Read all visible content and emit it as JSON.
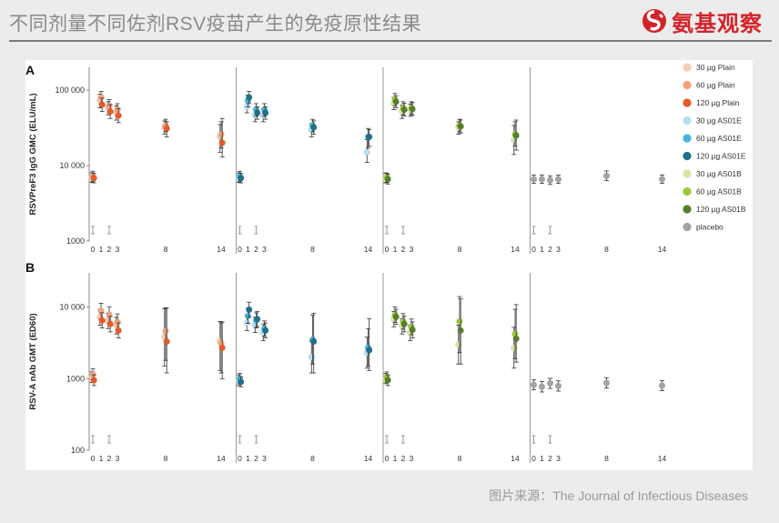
{
  "header": {
    "title": "不同剂量不同佐剂RSV疫苗产生的免疫原性结果",
    "logo_text": "氨基观察"
  },
  "source": "图片来源：The Journal of Infectious Diseases",
  "legend": [
    {
      "label": "30 µg Plain",
      "color": "#f6cdb0"
    },
    {
      "label": "60 µg Plain",
      "color": "#f3a27c"
    },
    {
      "label": "120 µg Plain",
      "color": "#e85a28"
    },
    {
      "label": "30 µg AS01E",
      "color": "#b6dff0"
    },
    {
      "label": "60 µg AS01E",
      "color": "#47b4d6"
    },
    {
      "label": "120 µg AS01E",
      "color": "#216f8a"
    },
    {
      "label": "30 µg AS01B",
      "color": "#d5e8a3"
    },
    {
      "label": "60 µg AS01B",
      "color": "#9cc838"
    },
    {
      "label": "120 µg AS01B",
      "color": "#567d2e"
    },
    {
      "label": "placebo",
      "color": "#a3a3a3"
    }
  ],
  "chart_data": [
    {
      "type": "scatter",
      "panel": "A",
      "ylabel": "RSVPreF3 IgG GMC (ELU/mL)",
      "yscale": "log",
      "ylim": [
        1000,
        200000
      ],
      "yticks": [
        1000,
        10000,
        100000
      ],
      "ytick_labels": [
        "1000",
        "10 000",
        "100 000"
      ],
      "x_ticks": [
        0,
        1,
        2,
        3,
        8,
        14
      ],
      "x_tick_labels": [
        "0",
        "1",
        "2",
        "3",
        "8",
        "14"
      ],
      "subplots": [
        {
          "group": "Plain",
          "series": [
            {
              "dose": "30 µg",
              "color": "#f6cdb0",
              "x": [
                0,
                1,
                2,
                3,
                8,
                14
              ],
              "y": [
                7000,
                72000,
                58000,
                50000,
                32000,
                24000
              ],
              "err_low": [
                6000,
                58000,
                47000,
                40000,
                26000,
                15000
              ],
              "err_high": [
                8000,
                88000,
                70000,
                62000,
                39000,
                35000
              ]
            },
            {
              "dose": "60 µg",
              "color": "#f3a27c",
              "x": [
                0,
                1,
                2,
                3,
                8,
                14
              ],
              "y": [
                7200,
                80000,
                62000,
                55000,
                34000,
                26000
              ],
              "err_low": [
                6200,
                65000,
                50000,
                45000,
                28000,
                17000
              ],
              "err_high": [
                8400,
                96000,
                75000,
                66000,
                41000,
                38000
              ]
            },
            {
              "dose": "120 µg",
              "color": "#e85a28",
              "x": [
                0,
                1,
                2,
                3,
                8,
                14
              ],
              "y": [
                6800,
                64000,
                52000,
                46000,
                31000,
                20000
              ],
              "err_low": [
                5900,
                52000,
                42000,
                37000,
                24000,
                13000
              ],
              "err_high": [
                7900,
                78000,
                64000,
                57000,
                38000,
                42000
              ]
            }
          ]
        },
        {
          "group": "AS01E",
          "series": [
            {
              "dose": "30 µg",
              "color": "#b6dff0",
              "x": [
                0,
                1,
                2,
                3,
                8,
                14
              ],
              "y": [
                7000,
                60000,
                46000,
                46000,
                30000,
                15000
              ],
              "err_low": [
                6000,
                50000,
                38000,
                38000,
                24000,
                11000
              ],
              "err_high": [
                8000,
                72000,
                56000,
                56000,
                36000,
                22000
              ]
            },
            {
              "dose": "60 µg",
              "color": "#47b4d6",
              "x": [
                0,
                1,
                2,
                3,
                8,
                14
              ],
              "y": [
                7200,
                72000,
                55000,
                55000,
                34000,
                24000
              ],
              "err_low": [
                6200,
                60000,
                45000,
                45000,
                28000,
                17000
              ],
              "err_high": [
                8400,
                86000,
                66000,
                66000,
                41000,
                31000
              ]
            },
            {
              "dose": "120 µg",
              "color": "#216f8a",
              "x": [
                0,
                1,
                2,
                3,
                8,
                14
              ],
              "y": [
                6800,
                80000,
                50000,
                50000,
                32000,
                24000
              ],
              "err_low": [
                5900,
                66000,
                41000,
                41000,
                26000,
                18000
              ],
              "err_high": [
                7900,
                96000,
                60000,
                60000,
                39000,
                30000
              ]
            }
          ]
        },
        {
          "group": "AS01B",
          "series": [
            {
              "dose": "30 µg",
              "color": "#d5e8a3",
              "x": [
                0,
                1,
                2,
                3,
                8,
                14
              ],
              "y": [
                6800,
                66000,
                52000,
                54000,
                32000,
                22000
              ],
              "err_low": [
                5900,
                55000,
                42000,
                45000,
                26000,
                14000
              ],
              "err_high": [
                7900,
                80000,
                63000,
                65000,
                38000,
                34000
              ]
            },
            {
              "dose": "60 µg",
              "color": "#9cc838",
              "x": [
                0,
                1,
                2,
                3,
                8,
                14
              ],
              "y": [
                7000,
                75000,
                58000,
                58000,
                34000,
                26000
              ],
              "err_low": [
                6000,
                62000,
                47000,
                48000,
                28000,
                18000
              ],
              "err_high": [
                8000,
                90000,
                70000,
                70000,
                41000,
                38000
              ]
            },
            {
              "dose": "120 µg",
              "color": "#567d2e",
              "x": [
                0,
                1,
                2,
                3,
                8,
                14
              ],
              "y": [
                6600,
                70000,
                55000,
                56000,
                33000,
                25000
              ],
              "err_low": [
                5700,
                58000,
                45000,
                46000,
                27000,
                16000
              ],
              "err_high": [
                7700,
                84000,
                67000,
                68000,
                40000,
                40000
              ]
            }
          ]
        },
        {
          "group": "placebo",
          "series": [
            {
              "dose": "placebo",
              "color": "#a3a3a3",
              "x": [
                0,
                1,
                2,
                3,
                8,
                14
              ],
              "y": [
                6600,
                6600,
                6400,
                6600,
                7300,
                6600
              ],
              "err_low": [
                5800,
                5800,
                5600,
                5800,
                6300,
                5800
              ],
              "err_high": [
                7500,
                7500,
                7300,
                7500,
                8500,
                7500
              ]
            }
          ]
        }
      ]
    },
    {
      "type": "scatter",
      "panel": "B",
      "ylabel": "RSV-A nAb GMT (ED60)",
      "yscale": "log",
      "ylim": [
        100,
        30000
      ],
      "yticks": [
        100,
        1000,
        10000
      ],
      "ytick_labels": [
        "100",
        "1000",
        "10 000"
      ],
      "x_ticks": [
        0,
        1,
        2,
        3,
        8,
        14
      ],
      "x_tick_labels": [
        "0",
        "1",
        "2",
        "3",
        "8",
        "14"
      ],
      "subplots": [
        {
          "group": "Plain",
          "series": [
            {
              "dose": "30 µg",
              "color": "#f6cdb0",
              "x": [
                0,
                1,
                2,
                3,
                8,
                14
              ],
              "y": [
                1050,
                7200,
                6400,
                5500,
                3800,
                3400
              ],
              "err_low": [
                880,
                5600,
                5000,
                4200,
                1500,
                1300
              ],
              "err_high": [
                1250,
                9300,
                8200,
                7200,
                9500,
                6300
              ]
            },
            {
              "dose": "60 µg",
              "color": "#f3a27c",
              "x": [
                0,
                1,
                2,
                3,
                8,
                14
              ],
              "y": [
                1150,
                8800,
                7800,
                6200,
                4600,
                3100
              ],
              "err_low": [
                960,
                6800,
                6000,
                4800,
                1800,
                1200
              ],
              "err_high": [
                1380,
                11300,
                10100,
                8000,
                9800,
                6000
              ]
            },
            {
              "dose": "120 µg",
              "color": "#e85a28",
              "x": [
                0,
                1,
                2,
                3,
                8,
                14
              ],
              "y": [
                950,
                6500,
                5800,
                4700,
                3300,
                2700
              ],
              "err_low": [
                800,
                5100,
                4500,
                3700,
                1200,
                1000
              ],
              "err_high": [
                1130,
                8300,
                7400,
                6000,
                9600,
                6200
              ]
            }
          ]
        },
        {
          "group": "AS01E",
          "series": [
            {
              "dose": "30 µg",
              "color": "#b6dff0",
              "x": [
                0,
                1,
                2,
                3,
                8,
                14
              ],
              "y": [
                950,
                6000,
                5600,
                4400,
                2000,
                2300
              ],
              "err_low": [
                800,
                4700,
                4400,
                3400,
                1200,
                1400
              ],
              "err_high": [
                1130,
                7700,
                7200,
                5700,
                3300,
                3800
              ]
            },
            {
              "dose": "60 µg",
              "color": "#47b4d6",
              "x": [
                0,
                1,
                2,
                3,
                8,
                14
              ],
              "y": [
                1000,
                7500,
                6500,
                5000,
                3500,
                2700
              ],
              "err_low": [
                850,
                5900,
                5100,
                3900,
                1600,
                1500
              ],
              "err_high": [
                1180,
                9600,
                8300,
                6400,
                7700,
                5000
              ]
            },
            {
              "dose": "120 µg",
              "color": "#216f8a",
              "x": [
                0,
                1,
                2,
                3,
                8,
                14
              ],
              "y": [
                900,
                9200,
                6800,
                4700,
                3300,
                2500
              ],
              "err_low": [
                770,
                7200,
                5300,
                3700,
                1200,
                1300
              ],
              "err_high": [
                1060,
                11700,
                8700,
                6000,
                8200,
                6900
              ]
            }
          ]
        },
        {
          "group": "AS01B",
          "series": [
            {
              "dose": "30 µg",
              "color": "#d5e8a3",
              "x": [
                0,
                1,
                2,
                3,
                8,
                14
              ],
              "y": [
                1000,
                6800,
                5400,
                4400,
                3000,
                2700
              ],
              "err_low": [
                850,
                5300,
                4200,
                3400,
                1600,
                1400
              ],
              "err_high": [
                1180,
                8700,
                6900,
                5600,
                5600,
                5200
              ]
            },
            {
              "dose": "60 µg",
              "color": "#9cc838",
              "x": [
                0,
                1,
                2,
                3,
                8,
                14
              ],
              "y": [
                1050,
                7800,
                6300,
                5300,
                6300,
                4200
              ],
              "err_low": [
                890,
                6100,
                4900,
                4100,
                2300,
                1900
              ],
              "err_high": [
                1240,
                10000,
                8100,
                6800,
                14000,
                9300
              ]
            },
            {
              "dose": "120 µg",
              "color": "#567d2e",
              "x": [
                0,
                1,
                2,
                3,
                8,
                14
              ],
              "y": [
                950,
                7300,
                5800,
                4800,
                4700,
                3600
              ],
              "err_low": [
                800,
                5700,
                4500,
                3700,
                1600,
                1700
              ],
              "err_high": [
                1130,
                9300,
                7500,
                6200,
                13000,
                10800
              ]
            }
          ]
        },
        {
          "group": "placebo",
          "series": [
            {
              "dose": "placebo",
              "color": "#a3a3a3",
              "x": [
                0,
                1,
                2,
                3,
                8,
                14
              ],
              "y": [
                820,
                770,
                860,
                790,
                870,
                800
              ],
              "err_low": [
                700,
                650,
                730,
                670,
                740,
                680
              ],
              "err_high": [
                960,
                910,
                1010,
                930,
                1030,
                940
              ]
            }
          ]
        }
      ]
    }
  ]
}
